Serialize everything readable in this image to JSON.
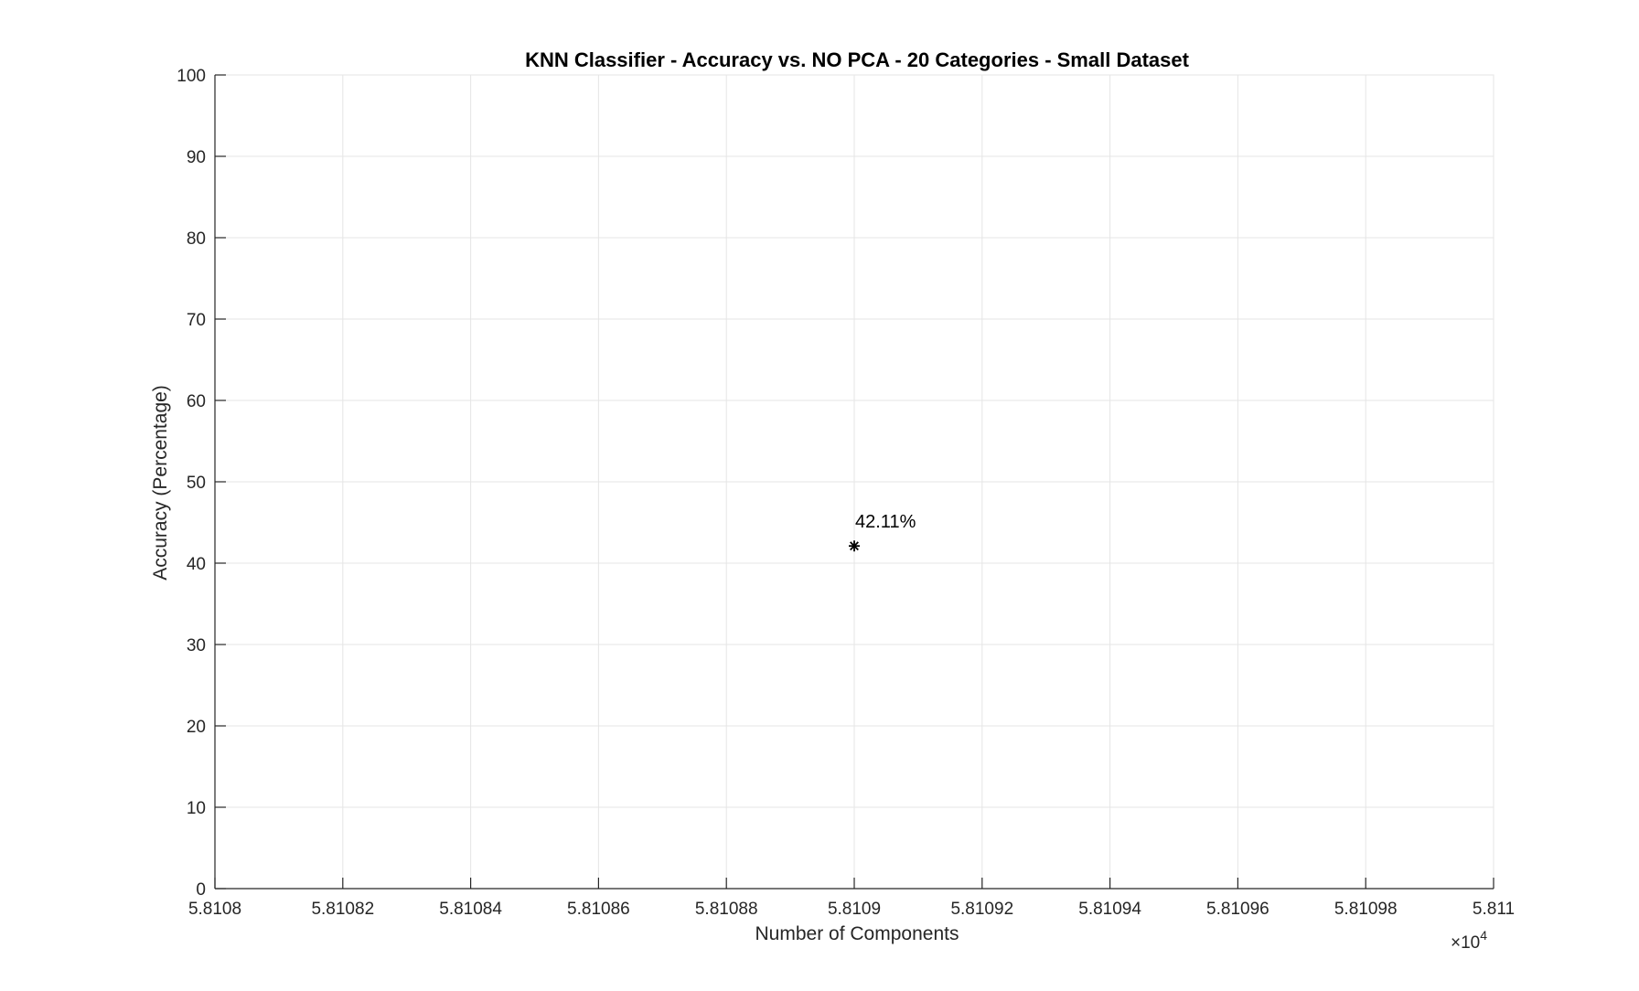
{
  "chart_data": {
    "type": "scatter",
    "title": "KNN Classifier - Accuracy vs. NO PCA - 20 Categories - Small Dataset",
    "xlabel": "Number of Components",
    "ylabel": "Accuracy (Percentage)",
    "x_exponent_multiplier": "×10",
    "x_exponent_power": "4",
    "xlim": [
      58108,
      58110
    ],
    "ylim": [
      0,
      100
    ],
    "x_ticks": [
      58108,
      58108.2,
      58108.4,
      58108.6,
      58108.8,
      58109,
      58109.2,
      58109.4,
      58109.6,
      58109.8,
      58110
    ],
    "x_tick_labels": [
      "5.8108",
      "5.81082",
      "5.81084",
      "5.81086",
      "5.81088",
      "5.8109",
      "5.81092",
      "5.81094",
      "5.81096",
      "5.81098",
      "5.811"
    ],
    "y_ticks": [
      0,
      10,
      20,
      30,
      40,
      50,
      60,
      70,
      80,
      90,
      100
    ],
    "y_tick_labels": [
      "0",
      "10",
      "20",
      "30",
      "40",
      "50",
      "60",
      "70",
      "80",
      "90",
      "100"
    ],
    "grid": true,
    "marker": "asterisk",
    "points": [
      {
        "x": 58109,
        "y": 42.11,
        "label": "42.11%"
      }
    ],
    "colors": {
      "axis": "#262626",
      "grid": "#e5e5e5",
      "marker": "#000000"
    }
  }
}
